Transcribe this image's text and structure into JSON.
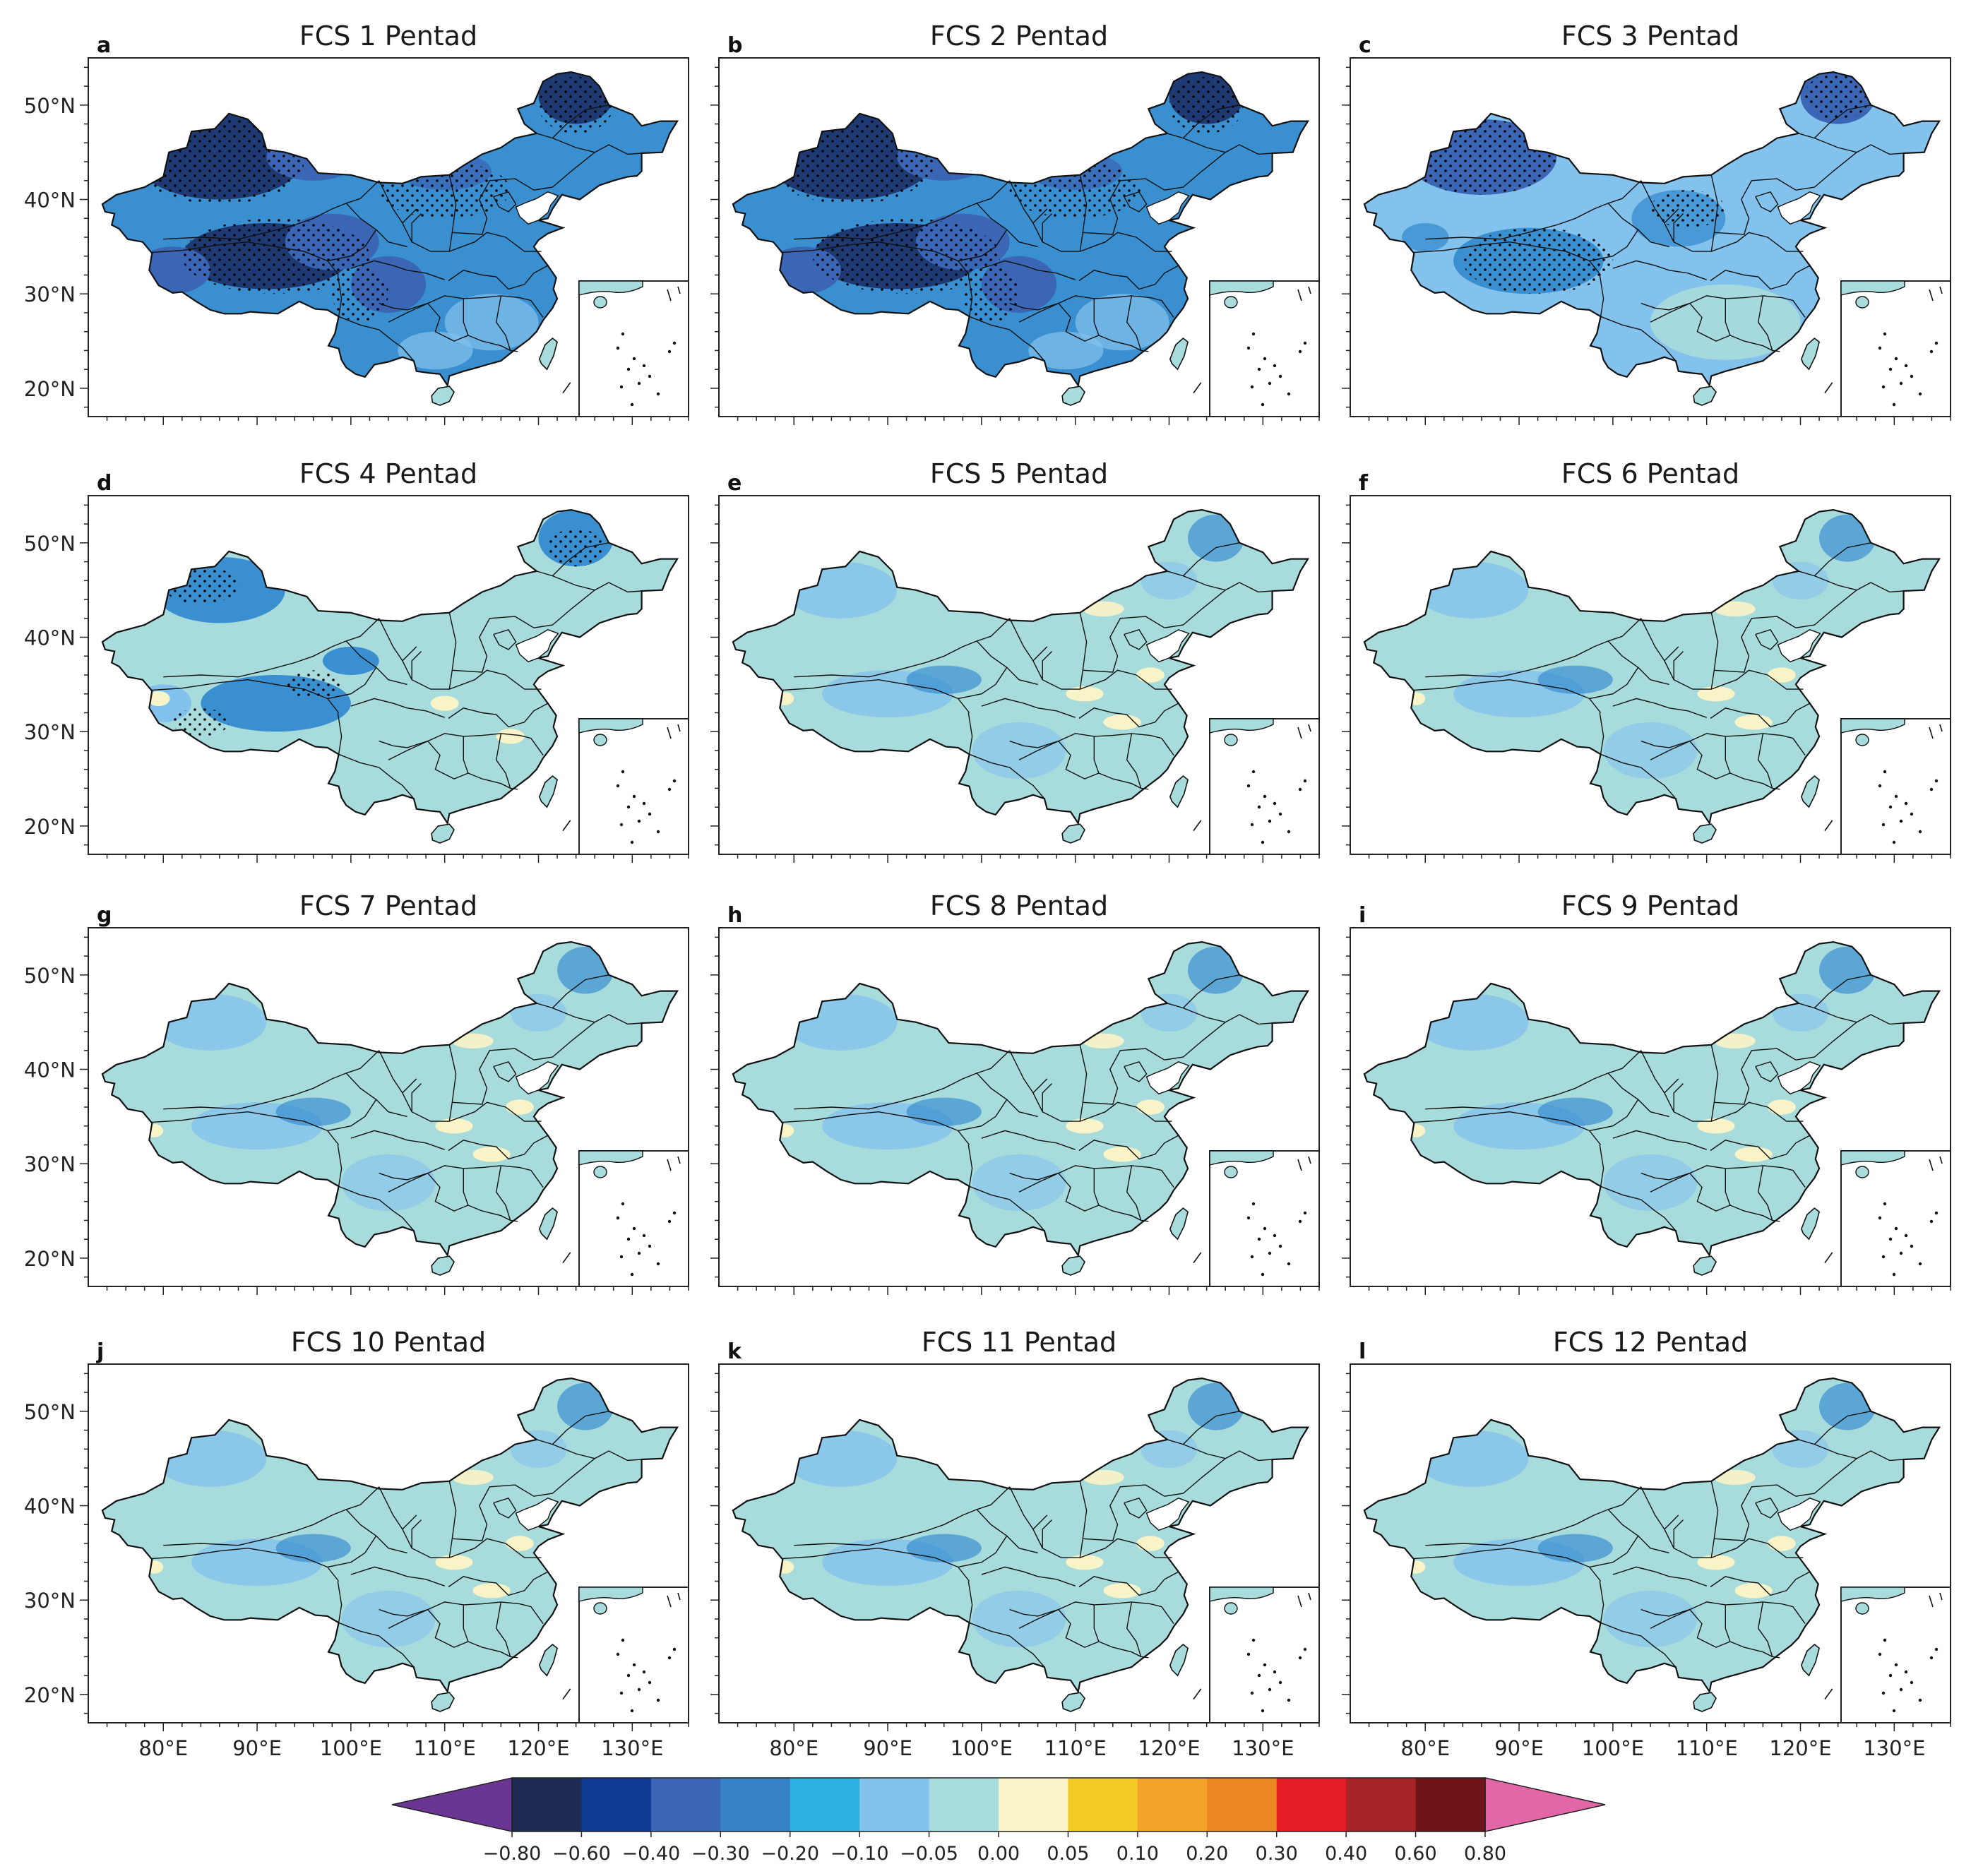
{
  "figure": {
    "panels": [
      {
        "letter": "a",
        "title": "FCS 1 Pentad",
        "level": 1.0
      },
      {
        "letter": "b",
        "title": "FCS 2 Pentad",
        "level": 0.95
      },
      {
        "letter": "c",
        "title": "FCS 3 Pentad",
        "level": 0.7
      },
      {
        "letter": "d",
        "title": "FCS 4 Pentad",
        "level": 0.55
      },
      {
        "letter": "e",
        "title": "FCS 5 Pentad",
        "level": 0.45
      },
      {
        "letter": "f",
        "title": "FCS 6 Pentad",
        "level": 0.4
      },
      {
        "letter": "g",
        "title": "FCS 7 Pentad",
        "level": 0.38
      },
      {
        "letter": "h",
        "title": "FCS 8 Pentad",
        "level": 0.36
      },
      {
        "letter": "i",
        "title": "FCS 9 Pentad",
        "level": 0.35
      },
      {
        "letter": "j",
        "title": "FCS 10 Pentad",
        "level": 0.33
      },
      {
        "letter": "k",
        "title": "FCS 11 Pentad",
        "level": 0.32
      },
      {
        "letter": "l",
        "title": "FCS 12 Pentad",
        "level": 0.3
      }
    ],
    "lat_ticks": [
      {
        "value": 20,
        "label": "20°N"
      },
      {
        "value": 30,
        "label": "30°N"
      },
      {
        "value": 40,
        "label": "40°N"
      },
      {
        "value": 50,
        "label": "50°N"
      }
    ],
    "lon_ticks": [
      {
        "value": 80,
        "label": "80°E"
      },
      {
        "value": 90,
        "label": "90°E"
      },
      {
        "value": 100,
        "label": "100°E"
      },
      {
        "value": 110,
        "label": "110°E"
      },
      {
        "value": 120,
        "label": "120°E"
      },
      {
        "value": 130,
        "label": "130°E"
      }
    ],
    "lat_range": [
      17,
      55
    ],
    "lon_range": [
      72,
      136
    ]
  },
  "colorbar": {
    "labels": [
      "−0.80",
      "−0.60",
      "−0.40",
      "−0.30",
      "−0.20",
      "−0.10",
      "−0.05",
      "0.00",
      "0.05",
      "0.10",
      "0.20",
      "0.30",
      "0.40",
      "0.60",
      "0.80"
    ],
    "colors": [
      "#1f2a55",
      "#0f3a92",
      "#3b66b6",
      "#3a82c8",
      "#2fb0e4",
      "#83c2ec",
      "#a8dcdc",
      "#f9f3c8",
      "#f2cb27",
      "#f3a22a",
      "#ec8822",
      "#e51e26",
      "#a62427",
      "#6d1518"
    ],
    "under_color": "#6b3594",
    "over_color": "#e266a8",
    "extend": "both"
  },
  "colors": {
    "dark": "#1f3a73",
    "mid_dark": "#3b66b6",
    "mid": "#3a8fd0",
    "light_blue": "#83c2ec",
    "pale": "#a8dcdc",
    "cream": "#f9f3c8",
    "yellow": "#f2cb27"
  }
}
